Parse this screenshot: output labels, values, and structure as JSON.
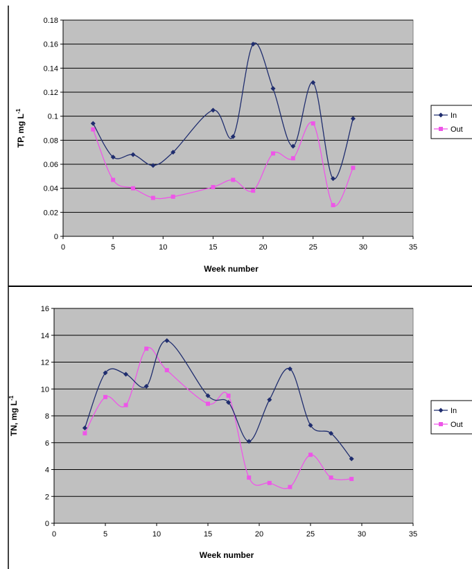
{
  "chart_data": [
    {
      "type": "line",
      "xlabel": "Week number",
      "ylabel_main": "TP, mg L",
      "ylabel_sup": "-1",
      "xlim": [
        0,
        35
      ],
      "ylim": [
        0,
        0.18
      ],
      "x_ticks": [
        0,
        5,
        10,
        15,
        20,
        25,
        30,
        35
      ],
      "x_tick_labels": [
        "0",
        "5",
        "10",
        "15",
        "20",
        "25",
        "30",
        "35"
      ],
      "y_ticks": [
        0,
        0.02,
        0.04,
        0.06,
        0.08,
        0.1,
        0.12,
        0.14,
        0.16,
        0.18
      ],
      "y_tick_labels": [
        "0",
        "0.02",
        "0.04",
        "0.06",
        "0.08",
        "0.1",
        "0.12",
        "0.14",
        "0.16",
        "0.18"
      ],
      "grid": "horizontal",
      "legend_position": "right",
      "series": [
        {
          "name": "In",
          "color": "#1f2d6e",
          "marker": "diamond",
          "x": [
            3,
            5,
            7,
            9,
            11,
            15,
            17,
            19,
            21,
            23,
            25,
            27,
            29
          ],
          "y": [
            0.094,
            0.066,
            0.068,
            0.059,
            0.07,
            0.105,
            0.083,
            0.16,
            0.123,
            0.075,
            0.128,
            0.048,
            0.098
          ]
        },
        {
          "name": "Out",
          "color": "#ee55e8",
          "marker": "square",
          "x": [
            3,
            5,
            7,
            9,
            11,
            15,
            17,
            19,
            21,
            23,
            25,
            27,
            29
          ],
          "y": [
            0.089,
            0.047,
            0.04,
            0.032,
            0.033,
            0.041,
            0.047,
            0.038,
            0.069,
            0.065,
            0.094,
            0.026,
            0.057
          ]
        }
      ]
    },
    {
      "type": "line",
      "xlabel": "Week number",
      "ylabel_main": "TN, mg L",
      "ylabel_sup": "-1",
      "xlim": [
        0,
        35
      ],
      "ylim": [
        0,
        16
      ],
      "x_ticks": [
        0,
        5,
        10,
        15,
        20,
        25,
        30,
        35
      ],
      "x_tick_labels": [
        "0",
        "5",
        "10",
        "15",
        "20",
        "25",
        "30",
        "35"
      ],
      "y_ticks": [
        0,
        2,
        4,
        6,
        8,
        10,
        12,
        14,
        16
      ],
      "y_tick_labels": [
        "0",
        "2",
        "4",
        "6",
        "8",
        "10",
        "12",
        "14",
        "16"
      ],
      "grid": "horizontal",
      "legend_position": "right",
      "series": [
        {
          "name": "In",
          "color": "#1f2d6e",
          "marker": "diamond",
          "x": [
            3,
            5,
            7,
            9,
            11,
            15,
            17,
            19,
            21,
            23,
            25,
            27,
            29
          ],
          "y": [
            7.1,
            11.2,
            11.1,
            10.2,
            13.6,
            9.5,
            9.0,
            6.1,
            9.2,
            11.5,
            7.3,
            6.7,
            4.8
          ]
        },
        {
          "name": "Out",
          "color": "#ee55e8",
          "marker": "square",
          "x": [
            3,
            5,
            7,
            9,
            11,
            15,
            17,
            19,
            21,
            23,
            25,
            27,
            29
          ],
          "y": [
            6.7,
            9.4,
            8.8,
            13.0,
            11.4,
            8.9,
            9.5,
            3.4,
            3.0,
            2.7,
            5.1,
            3.4,
            3.3
          ]
        }
      ]
    }
  ]
}
